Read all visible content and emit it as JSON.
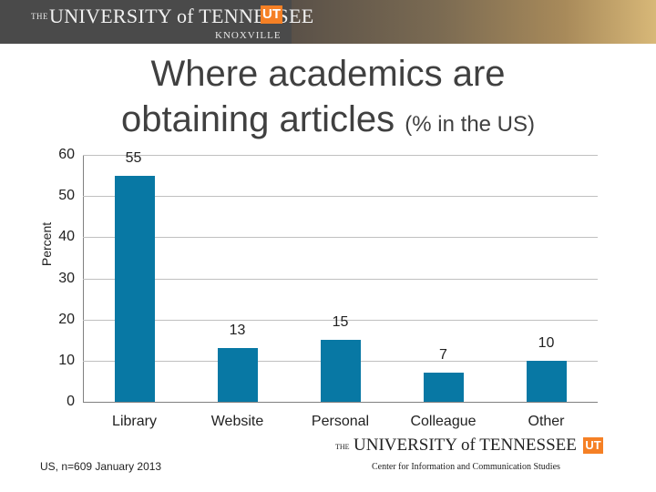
{
  "header": {
    "the": "THE",
    "university": "UNIVERSITY of TENNESSEE",
    "logo": "UT",
    "campus": "KNOXVILLE"
  },
  "chart_data": {
    "type": "bar",
    "title": "Where academics are obtaining articles",
    "subtitle": "(% in the US)",
    "ylabel": "Percent",
    "xlabel": "",
    "ylim": [
      0,
      60
    ],
    "yticks": [
      0,
      10,
      20,
      30,
      40,
      50,
      60
    ],
    "categories": [
      "Library",
      "Website",
      "Personal",
      "Colleague",
      "Other"
    ],
    "values": [
      55,
      13,
      15,
      7,
      10
    ],
    "data_labels": [
      "55",
      "13",
      "15",
      "7",
      "10"
    ],
    "bar_color": "#0878a4",
    "grid": true
  },
  "footer": {
    "source": "US, n=609 January 2013",
    "the": "THE",
    "university": "UNIVERSITY of TENNESSEE",
    "logo": "UT",
    "center": "Center for Information and Communication Studies"
  }
}
